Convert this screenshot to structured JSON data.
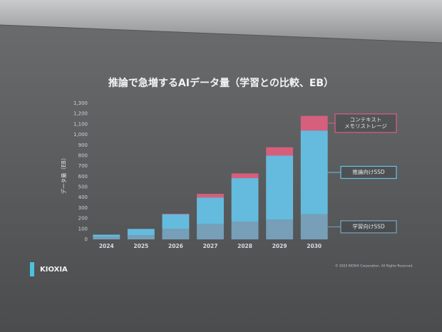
{
  "chart_data": {
    "type": "stacked_bar",
    "title": "推論で急増するAIデータ量（学習との比較、EB）",
    "y_label": "データ量（EB）",
    "categories": [
      "2024",
      "2025",
      "2026",
      "2027",
      "2028",
      "2029",
      "2030"
    ],
    "series": [
      {
        "name": "学習向けSSD",
        "color": "#7ba5c0",
        "values": [
          25,
          40,
          100,
          145,
          170,
          190,
          240
        ]
      },
      {
        "name": "推論向けSSD",
        "color": "#66c3e8",
        "values": [
          20,
          60,
          140,
          255,
          415,
          610,
          800
        ]
      },
      {
        "name": "コンテキスト\nメモリストレージ",
        "color": "#df5f7e",
        "values": [
          0,
          0,
          5,
          35,
          45,
          80,
          140
        ]
      }
    ],
    "ylim": [
      0,
      1300
    ],
    "yticks": [
      0,
      100,
      200,
      300,
      400,
      500,
      600,
      700,
      800,
      900,
      {
        "value": 1000,
        "label": "1,000"
      },
      {
        "value": 1100,
        "label": "1,100"
      },
      {
        "value": 1200,
        "label": "1,200"
      },
      {
        "value": 1300,
        "label": "1,300"
      }
    ],
    "grid": false
  },
  "logo": "KIOXIA",
  "copyright": "© 2025 KIOXIA Corporation. All Rights Reserved."
}
